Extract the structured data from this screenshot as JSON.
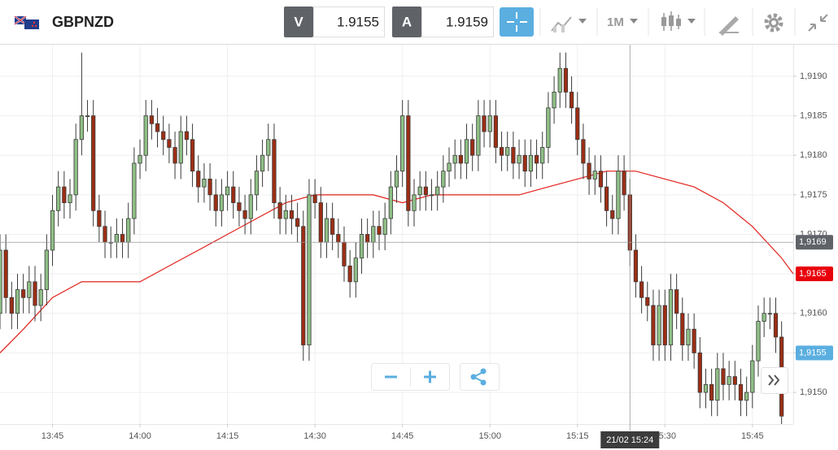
{
  "toolbar": {
    "symbol": "GBPNZD",
    "bid_label": "V",
    "bid": "1.9155",
    "ask_label": "A",
    "ask": "1.9159",
    "timeframe": "1M"
  },
  "chart_data": {
    "type": "candlestick",
    "xlim": [
      "13:36",
      "15:52"
    ],
    "xticks": [
      "13:45",
      "14:00",
      "14:15",
      "14:30",
      "14:45",
      "15:00",
      "15:15",
      "15:30",
      "15:45"
    ],
    "ylim": [
      1.9146,
      1.9194
    ],
    "yticks": [
      {
        "value": 1.915,
        "label": "1,9150"
      },
      {
        "value": 1.9155,
        "label": "1,9155"
      },
      {
        "value": 1.916,
        "label": "1,9160"
      },
      {
        "value": 1.9165,
        "label": "1,9165"
      },
      {
        "value": 1.917,
        "label": "1,9170"
      },
      {
        "value": 1.9175,
        "label": "1,9175"
      },
      {
        "value": 1.918,
        "label": "1,9180"
      },
      {
        "value": 1.9185,
        "label": "1,9185"
      },
      {
        "value": 1.919,
        "label": "1,9190"
      }
    ],
    "grid": true,
    "up_color": "#8fbf86",
    "down_color": "#9c2e15",
    "candles": {
      "x": [
        "13:36",
        "13:37",
        "13:38",
        "13:39",
        "13:40",
        "13:41",
        "13:42",
        "13:43",
        "13:44",
        "13:45",
        "13:46",
        "13:47",
        "13:48",
        "13:49",
        "13:50",
        "13:51",
        "13:52",
        "13:53",
        "13:54",
        "13:55",
        "13:56",
        "13:57",
        "13:58",
        "13:59",
        "14:00",
        "14:01",
        "14:02",
        "14:03",
        "14:04",
        "14:05",
        "14:06",
        "14:07",
        "14:08",
        "14:09",
        "14:10",
        "14:11",
        "14:12",
        "14:13",
        "14:14",
        "14:15",
        "14:16",
        "14:17",
        "14:18",
        "14:19",
        "14:20",
        "14:21",
        "14:22",
        "14:23",
        "14:24",
        "14:25",
        "14:26",
        "14:27",
        "14:28",
        "14:29",
        "14:30",
        "14:31",
        "14:32",
        "14:33",
        "14:34",
        "14:35",
        "14:36",
        "14:37",
        "14:38",
        "14:39",
        "14:40",
        "14:41",
        "14:42",
        "14:43",
        "14:44",
        "14:45",
        "14:46",
        "14:47",
        "14:48",
        "14:49",
        "14:50",
        "14:51",
        "14:52",
        "14:53",
        "14:54",
        "14:55",
        "14:56",
        "14:57",
        "14:58",
        "14:59",
        "15:00",
        "15:01",
        "15:02",
        "15:03",
        "15:04",
        "15:05",
        "15:06",
        "15:07",
        "15:08",
        "15:09",
        "15:10",
        "15:11",
        "15:12",
        "15:13",
        "15:14",
        "15:15",
        "15:16",
        "15:17",
        "15:18",
        "15:19",
        "15:20",
        "15:21",
        "15:22",
        "15:23",
        "15:24",
        "15:25",
        "15:26",
        "15:27",
        "15:28",
        "15:29",
        "15:30",
        "15:31",
        "15:32",
        "15:33",
        "15:34",
        "15:35",
        "15:36",
        "15:37",
        "15:38",
        "15:39",
        "15:40",
        "15:41",
        "15:42",
        "15:43",
        "15:44",
        "15:45",
        "15:46",
        "15:47",
        "15:48",
        "15:49",
        "15:50"
      ],
      "open": [
        1.916,
        1.9168,
        1.9162,
        1.916,
        1.9163,
        1.9162,
        1.9164,
        1.9161,
        1.9163,
        1.9168,
        1.9173,
        1.9176,
        1.9174,
        1.9175,
        1.9182,
        1.9185,
        1.9185,
        1.9173,
        1.9171,
        1.9169,
        1.9169,
        1.917,
        1.9169,
        1.9172,
        1.9179,
        1.918,
        1.9185,
        1.9184,
        1.9183,
        1.9182,
        1.9181,
        1.9179,
        1.9183,
        1.9182,
        1.9178,
        1.9176,
        1.9177,
        1.9175,
        1.9173,
        1.9175,
        1.9176,
        1.9174,
        1.9173,
        1.9172,
        1.9175,
        1.9178,
        1.918,
        1.9182,
        1.9174,
        1.9172,
        1.9173,
        1.9172,
        1.9171,
        1.9156,
        1.9175,
        1.9174,
        1.9169,
        1.9172,
        1.917,
        1.9169,
        1.9166,
        1.9164,
        1.9167,
        1.917,
        1.9169,
        1.9171,
        1.917,
        1.9172,
        1.9176,
        1.9178,
        1.9185,
        1.9173,
        1.9175,
        1.9176,
        1.9175,
        1.9175,
        1.9176,
        1.9178,
        1.9179,
        1.918,
        1.9179,
        1.9182,
        1.918,
        1.9185,
        1.9183,
        1.9185,
        1.9181,
        1.918,
        1.9181,
        1.9179,
        1.918,
        1.9178,
        1.918,
        1.9179,
        1.9181,
        1.9186,
        1.9188,
        1.9191,
        1.9188,
        1.9186,
        1.9182,
        1.9179,
        1.9177,
        1.9178,
        1.9176,
        1.9173,
        1.9172,
        1.9178,
        1.9175,
        1.9168,
        1.9164,
        1.9162,
        1.9161,
        1.9156,
        1.9161,
        1.9156,
        1.9163,
        1.916,
        1.9156,
        1.9158,
        1.9155,
        1.915,
        1.9151,
        1.9149,
        1.9153,
        1.9151,
        1.9152,
        1.9151,
        1.9149,
        1.915,
        1.9154,
        1.9159,
        1.916,
        1.916,
        1.9157
      ],
      "high": [
        1.917,
        1.917,
        1.9164,
        1.9165,
        1.9165,
        1.9166,
        1.9166,
        1.9165,
        1.917,
        1.9175,
        1.9178,
        1.9178,
        1.9177,
        1.9184,
        1.9193,
        1.9187,
        1.9187,
        1.9175,
        1.9173,
        1.9171,
        1.9172,
        1.9172,
        1.9174,
        1.9181,
        1.9182,
        1.9187,
        1.9187,
        1.9186,
        1.9185,
        1.9184,
        1.9183,
        1.9185,
        1.9185,
        1.9184,
        1.918,
        1.9179,
        1.9179,
        1.9177,
        1.9177,
        1.9178,
        1.9178,
        1.9176,
        1.9175,
        1.9177,
        1.918,
        1.9182,
        1.9184,
        1.9184,
        1.9176,
        1.9175,
        1.9175,
        1.9174,
        1.9173,
        1.9177,
        1.9177,
        1.9176,
        1.9174,
        1.9174,
        1.9172,
        1.9171,
        1.9168,
        1.9169,
        1.9172,
        1.9172,
        1.9173,
        1.9173,
        1.9174,
        1.9178,
        1.918,
        1.9187,
        1.9187,
        1.9177,
        1.9178,
        1.9178,
        1.9177,
        1.9178,
        1.918,
        1.9181,
        1.9182,
        1.9182,
        1.9184,
        1.9184,
        1.9187,
        1.9187,
        1.9187,
        1.9187,
        1.9183,
        1.9183,
        1.9183,
        1.9182,
        1.9182,
        1.9182,
        1.9182,
        1.9183,
        1.9188,
        1.919,
        1.9193,
        1.9193,
        1.919,
        1.9188,
        1.9184,
        1.9181,
        1.918,
        1.918,
        1.9178,
        1.9175,
        1.918,
        1.918,
        1.9177,
        1.917,
        1.9166,
        1.9164,
        1.9163,
        1.9163,
        1.9163,
        1.9165,
        1.9165,
        1.9162,
        1.916,
        1.916,
        1.9157,
        1.9153,
        1.9153,
        1.9155,
        1.9155,
        1.9154,
        1.9154,
        1.9153,
        1.9152,
        1.9156,
        1.9161,
        1.9162,
        1.9162,
        1.9162,
        1.9159
      ],
      "low": [
        1.9158,
        1.916,
        1.9158,
        1.9158,
        1.916,
        1.916,
        1.9159,
        1.9159,
        1.9161,
        1.9166,
        1.9171,
        1.9172,
        1.9172,
        1.9173,
        1.918,
        1.9183,
        1.9171,
        1.9169,
        1.9167,
        1.9167,
        1.9167,
        1.9167,
        1.9167,
        1.917,
        1.9177,
        1.9178,
        1.9182,
        1.9181,
        1.918,
        1.9179,
        1.9177,
        1.9177,
        1.918,
        1.9176,
        1.9174,
        1.9174,
        1.9173,
        1.9171,
        1.9171,
        1.9173,
        1.9172,
        1.9171,
        1.917,
        1.917,
        1.9173,
        1.9176,
        1.9178,
        1.9172,
        1.917,
        1.917,
        1.917,
        1.9169,
        1.9154,
        1.9154,
        1.9172,
        1.9167,
        1.9167,
        1.9168,
        1.9167,
        1.9164,
        1.9162,
        1.9162,
        1.9165,
        1.9167,
        1.9167,
        1.9168,
        1.9168,
        1.917,
        1.9174,
        1.9176,
        1.9171,
        1.9171,
        1.9173,
        1.9173,
        1.9173,
        1.9173,
        1.9174,
        1.9176,
        1.9177,
        1.9177,
        1.9177,
        1.9178,
        1.9178,
        1.9181,
        1.9181,
        1.9179,
        1.9178,
        1.9178,
        1.9177,
        1.9177,
        1.9176,
        1.9176,
        1.9177,
        1.9177,
        1.9179,
        1.9184,
        1.9186,
        1.9186,
        1.9184,
        1.918,
        1.9177,
        1.9175,
        1.9175,
        1.9174,
        1.9171,
        1.917,
        1.917,
        1.9173,
        1.9166,
        1.9162,
        1.916,
        1.9159,
        1.9154,
        1.9154,
        1.9154,
        1.9154,
        1.9158,
        1.9154,
        1.9154,
        1.9153,
        1.9148,
        1.9148,
        1.9147,
        1.9147,
        1.9149,
        1.9149,
        1.9149,
        1.9147,
        1.9147,
        1.9148,
        1.9152,
        1.9157,
        1.9158,
        1.9155,
        1.9145
      ],
      "close": [
        1.9168,
        1.9162,
        1.916,
        1.9163,
        1.9162,
        1.9164,
        1.9161,
        1.9163,
        1.9168,
        1.9173,
        1.9176,
        1.9174,
        1.9175,
        1.9182,
        1.9185,
        1.9185,
        1.9173,
        1.9171,
        1.9169,
        1.9169,
        1.917,
        1.9169,
        1.9172,
        1.9179,
        1.918,
        1.9185,
        1.9184,
        1.9183,
        1.9182,
        1.9181,
        1.9179,
        1.9183,
        1.9182,
        1.9178,
        1.9176,
        1.9177,
        1.9175,
        1.9173,
        1.9175,
        1.9176,
        1.9174,
        1.9173,
        1.9172,
        1.9175,
        1.9178,
        1.918,
        1.9182,
        1.9174,
        1.9172,
        1.9173,
        1.9172,
        1.9171,
        1.9156,
        1.9175,
        1.9174,
        1.9169,
        1.9172,
        1.917,
        1.9169,
        1.9166,
        1.9164,
        1.9167,
        1.917,
        1.9169,
        1.9171,
        1.917,
        1.9172,
        1.9176,
        1.9178,
        1.9185,
        1.9173,
        1.9175,
        1.9176,
        1.9175,
        1.9175,
        1.9176,
        1.9178,
        1.9179,
        1.918,
        1.9179,
        1.9182,
        1.918,
        1.9185,
        1.9183,
        1.9185,
        1.9181,
        1.918,
        1.9181,
        1.9179,
        1.918,
        1.9178,
        1.918,
        1.9179,
        1.9181,
        1.9186,
        1.9188,
        1.9191,
        1.9188,
        1.9186,
        1.9182,
        1.9179,
        1.9177,
        1.9178,
        1.9176,
        1.9173,
        1.9172,
        1.9178,
        1.9175,
        1.9168,
        1.9164,
        1.9162,
        1.9161,
        1.9156,
        1.9161,
        1.9156,
        1.9163,
        1.916,
        1.9156,
        1.9158,
        1.9155,
        1.915,
        1.9151,
        1.9149,
        1.9153,
        1.9151,
        1.9152,
        1.9151,
        1.9149,
        1.915,
        1.9154,
        1.9159,
        1.916,
        1.916,
        1.9157,
        1.9147
      ]
    },
    "moving_average": {
      "color": "#e0201a",
      "x": [
        "13:36",
        "13:40",
        "13:45",
        "13:50",
        "13:55",
        "14:00",
        "14:05",
        "14:10",
        "14:15",
        "14:20",
        "14:25",
        "14:30",
        "14:35",
        "14:40",
        "14:45",
        "14:50",
        "14:55",
        "15:00",
        "15:05",
        "15:10",
        "15:15",
        "15:20",
        "15:25",
        "15:30",
        "15:35",
        "15:40",
        "15:45",
        "15:50",
        "15:52"
      ],
      "values": [
        1.9155,
        1.9158,
        1.9162,
        1.9164,
        1.9164,
        1.9164,
        1.9166,
        1.9168,
        1.917,
        1.9172,
        1.9174,
        1.9175,
        1.9175,
        1.9175,
        1.9174,
        1.9175,
        1.9175,
        1.9175,
        1.9175,
        1.9176,
        1.9177,
        1.9178,
        1.9178,
        1.9177,
        1.9176,
        1.9174,
        1.9171,
        1.9167,
        1.9165
      ]
    },
    "crosshair": {
      "value": 1.9169,
      "label": "1,9169",
      "time_label": "21/02 15:24"
    },
    "price_markers": [
      {
        "value": 1.9165,
        "label": "1,9165",
        "color": "#e8000b"
      },
      {
        "value": 1.9155,
        "label": "1,9155",
        "color": "#5aaee0"
      }
    ]
  }
}
